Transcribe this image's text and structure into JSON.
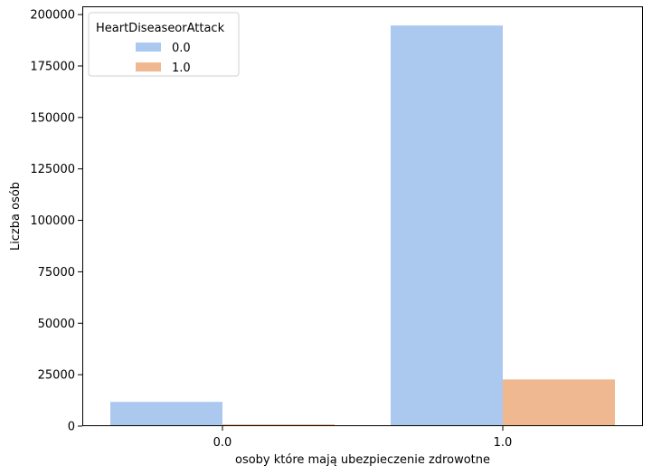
{
  "chart_data": {
    "type": "bar",
    "title": "",
    "xlabel": "osoby które mają ubezpieczenie zdrowotne",
    "ylabel": "Liczba osób",
    "categories": [
      "0.0",
      "1.0"
    ],
    "series": [
      {
        "name": "0.0",
        "values": [
          11800,
          194700
        ],
        "color": "#abc9ef"
      },
      {
        "name": "1.0",
        "values": [
          900,
          22700
        ],
        "color": "#f0b890"
      }
    ],
    "ylim": [
      0,
      204000
    ],
    "yticks": [
      0,
      25000,
      50000,
      75000,
      100000,
      125000,
      150000,
      175000,
      200000
    ],
    "grid": false,
    "legend": {
      "title": "HeartDiseaseorAttack",
      "placement": "top-left"
    }
  }
}
